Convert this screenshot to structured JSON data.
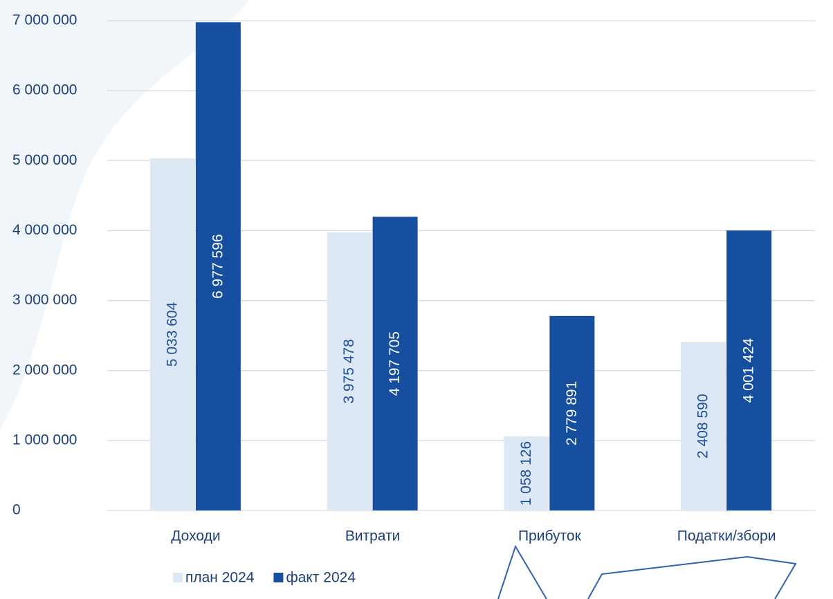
{
  "chart_data": {
    "type": "bar",
    "categories": [
      "Доходи",
      "Витрати",
      "Прибуток",
      "Податки/збори"
    ],
    "series": [
      {
        "name": "план 2024",
        "color": "#dde8f5",
        "label_color": "#1d4e9c",
        "values": [
          5033604,
          3975478,
          1058126,
          2408590
        ],
        "value_labels": [
          "5 033 604",
          "3 975 478",
          "1 058 126",
          "2 408 590"
        ]
      },
      {
        "name": "факт 2024",
        "color": "#174fa0",
        "label_color": "#ffffff",
        "values": [
          6977596,
          4197705,
          2779891,
          4001424
        ],
        "value_labels": [
          "6 977 596",
          "4 197 705",
          "2 779 891",
          "4 001 424"
        ]
      }
    ],
    "ylim": [
      0,
      7000000
    ],
    "yticks": [
      {
        "value": 0,
        "label": "0"
      },
      {
        "value": 1000000,
        "label": "1 000 000"
      },
      {
        "value": 2000000,
        "label": "2 000 000"
      },
      {
        "value": 3000000,
        "label": "3 000 000"
      },
      {
        "value": 4000000,
        "label": "4 000 000"
      },
      {
        "value": 5000000,
        "label": "5 000 000"
      },
      {
        "value": 6000000,
        "label": "6 000 000"
      },
      {
        "value": 7000000,
        "label": "7 000 000"
      }
    ],
    "grid": true,
    "legend": "bottom"
  }
}
